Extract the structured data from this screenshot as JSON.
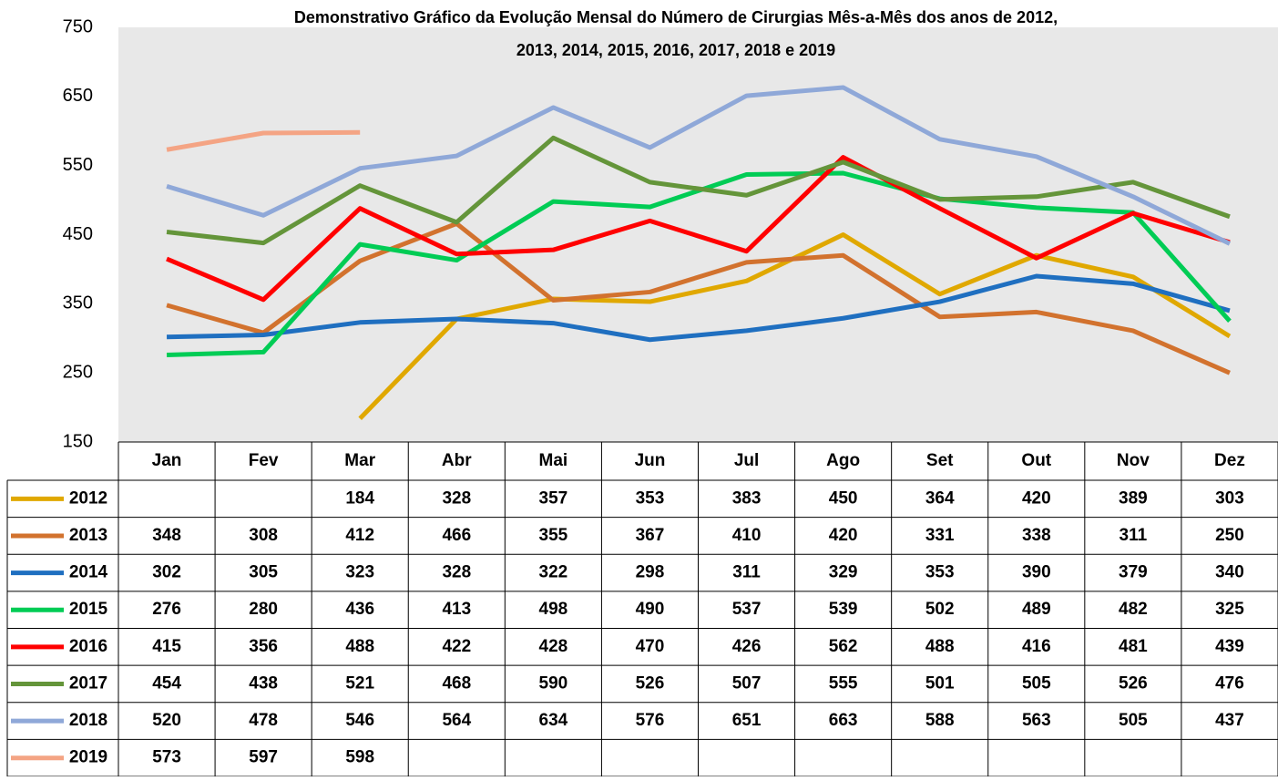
{
  "chart_data": {
    "type": "line",
    "title": [
      "Demonstrativo Gráfico da Evolução Mensal do Número de Cirurgias Mês-a-Mês dos anos de  2012,",
      "2013, 2014, 2015, 2016, 2017, 2018 e 2019"
    ],
    "categories": [
      "Jan",
      "Fev",
      "Mar",
      "Abr",
      "Mai",
      "Jun",
      "Jul",
      "Ago",
      "Set",
      "Out",
      "Nov",
      "Dez"
    ],
    "ylim": [
      150,
      750
    ],
    "yticks": [
      150,
      250,
      350,
      450,
      550,
      650,
      750
    ],
    "grid": false,
    "series": [
      {
        "name": "2012",
        "color": "#e0a800",
        "values": [
          null,
          null,
          184,
          328,
          357,
          353,
          383,
          450,
          364,
          420,
          389,
          303
        ]
      },
      {
        "name": "2013",
        "color": "#d2722e",
        "values": [
          348,
          308,
          412,
          466,
          355,
          367,
          410,
          420,
          331,
          338,
          311,
          250
        ]
      },
      {
        "name": "2014",
        "color": "#1f6fc0",
        "values": [
          302,
          305,
          323,
          328,
          322,
          298,
          311,
          329,
          353,
          390,
          379,
          340
        ]
      },
      {
        "name": "2015",
        "color": "#00cc55",
        "values": [
          276,
          280,
          436,
          413,
          498,
          490,
          537,
          539,
          502,
          489,
          482,
          325
        ]
      },
      {
        "name": "2016",
        "color": "#ff0000",
        "values": [
          415,
          356,
          488,
          422,
          428,
          470,
          426,
          562,
          488,
          416,
          481,
          439
        ]
      },
      {
        "name": "2017",
        "color": "#64953a",
        "values": [
          454,
          438,
          521,
          468,
          590,
          526,
          507,
          555,
          501,
          505,
          526,
          476
        ]
      },
      {
        "name": "2018",
        "color": "#8fa8d8",
        "values": [
          520,
          478,
          546,
          564,
          634,
          576,
          651,
          663,
          588,
          563,
          505,
          437
        ]
      },
      {
        "name": "2019",
        "color": "#f4a484",
        "values": [
          573,
          597,
          598,
          null,
          null,
          null,
          null,
          null,
          null,
          null,
          null,
          null
        ]
      }
    ]
  }
}
